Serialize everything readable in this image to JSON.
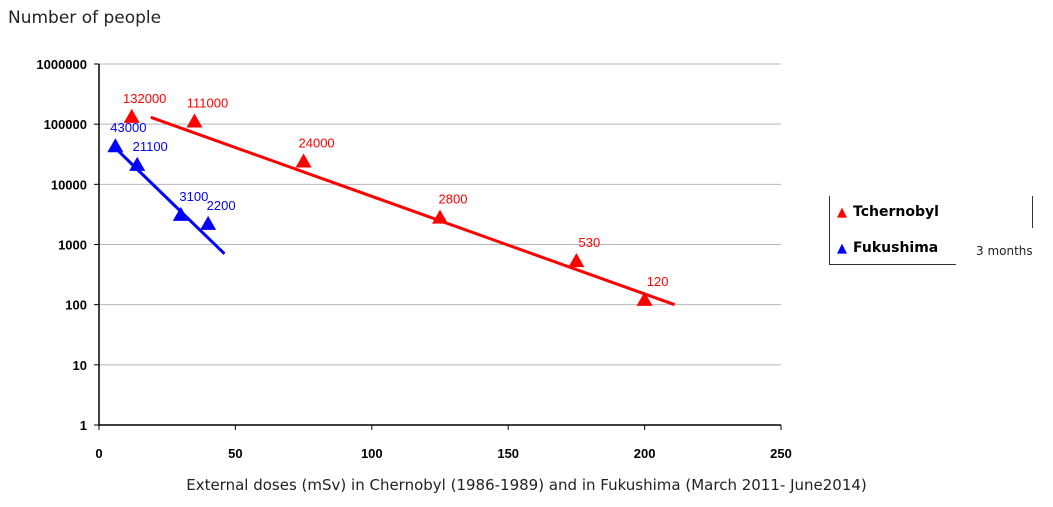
{
  "chart_data": {
    "type": "scatter",
    "ylabel": "Number of people",
    "xlabel": "External doses (mSv) in Chernobyl (1986-1989) and in Fukushima (March 2011- June2014)",
    "y_scale": "log",
    "ylim": [
      1,
      1000000
    ],
    "xlim": [
      0,
      250
    ],
    "x_ticks": [
      0,
      50,
      100,
      150,
      200,
      250
    ],
    "x_tick_labels": [
      "0",
      "50",
      "100",
      "150",
      "200",
      "250"
    ],
    "y_ticks": [
      1,
      10,
      100,
      1000,
      10000,
      100000,
      1000000
    ],
    "y_tick_labels": [
      "1",
      "10",
      "100",
      "1000",
      "10000",
      "100000",
      "1000000"
    ],
    "grid": "horizontal",
    "legend_position": "right",
    "legend_note": "3 months",
    "series": [
      {
        "name": "Tchernobyl",
        "color": "#ff0000",
        "marker": "triangle",
        "points": [
          {
            "x": 12,
            "y": 132000,
            "label": "132000"
          },
          {
            "x": 35,
            "y": 111000,
            "label": "111000"
          },
          {
            "x": 75,
            "y": 24000,
            "label": "24000"
          },
          {
            "x": 125,
            "y": 2800,
            "label": "2800"
          },
          {
            "x": 175,
            "y": 530,
            "label": "530"
          },
          {
            "x": 200,
            "y": 120,
            "label": "120"
          }
        ],
        "trendline": [
          {
            "x": 19,
            "y": 130000
          },
          {
            "x": 211,
            "y": 100
          }
        ]
      },
      {
        "name": "Fukushima",
        "color": "#0000ff",
        "marker": "triangle",
        "points": [
          {
            "x": 6,
            "y": 43000,
            "label": "43000"
          },
          {
            "x": 14,
            "y": 21100,
            "label": "21100"
          },
          {
            "x": 30,
            "y": 3100,
            "label": "3100"
          },
          {
            "x": 40,
            "y": 2200,
            "label": "2200"
          }
        ],
        "trendline": [
          {
            "x": 6,
            "y": 40000
          },
          {
            "x": 46,
            "y": 700
          }
        ]
      }
    ]
  }
}
